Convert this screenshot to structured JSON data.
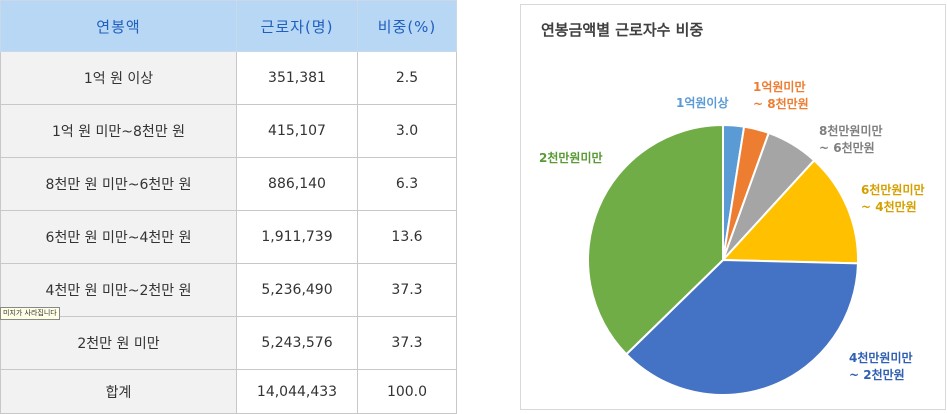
{
  "table": {
    "headers": [
      "연봉액",
      "근로자(명)",
      "비중(%)"
    ],
    "rows": [
      {
        "label": "1억 원 이상",
        "workers": "351,381",
        "share": "2.5"
      },
      {
        "label": "1억 원 미만~8천만 원",
        "workers": "415,107",
        "share": "3.0"
      },
      {
        "label": "8천만 원 미만~6천만 원",
        "workers": "886,140",
        "share": "6.3"
      },
      {
        "label": "6천만 원 미만~4천만 원",
        "workers": "1,911,739",
        "share": "13.6"
      },
      {
        "label": "4천만 원 미만~2천만 원",
        "workers": "5,236,490",
        "share": "37.3"
      },
      {
        "label": "2천만 원 미만",
        "workers": "5,243,576",
        "share": "37.3"
      },
      {
        "label": "합계",
        "workers": "14,044,433",
        "share": "100.0"
      }
    ]
  },
  "tooltip": "미지가 사라집니다",
  "chart_data": {
    "type": "pie",
    "title": "연봉금액별 근로자수 비중",
    "slices": [
      {
        "label_lines": [
          "1억원이상"
        ],
        "value": 2.5,
        "color": "#5b9bd5",
        "text_color": "#5b9bd5"
      },
      {
        "label_lines": [
          "1억원미만",
          "~ 8천만원"
        ],
        "value": 3.0,
        "color": "#ed7d31",
        "text_color": "#ed7d31"
      },
      {
        "label_lines": [
          "8천만원미만",
          "~ 6천만원"
        ],
        "value": 6.3,
        "color": "#a5a5a5",
        "text_color": "#7f7f7f"
      },
      {
        "label_lines": [
          "6천만원미만",
          "~ 4천만원"
        ],
        "value": 13.6,
        "color": "#ffc000",
        "text_color": "#d4a000"
      },
      {
        "label_lines": [
          "4천만원미만",
          "~ 2천만원"
        ],
        "value": 37.3,
        "color": "#4472c4",
        "text_color": "#2f5fb0"
      },
      {
        "label_lines": [
          "2천만원미만"
        ],
        "value": 37.3,
        "color": "#70ad47",
        "text_color": "#5a9a35"
      }
    ]
  }
}
